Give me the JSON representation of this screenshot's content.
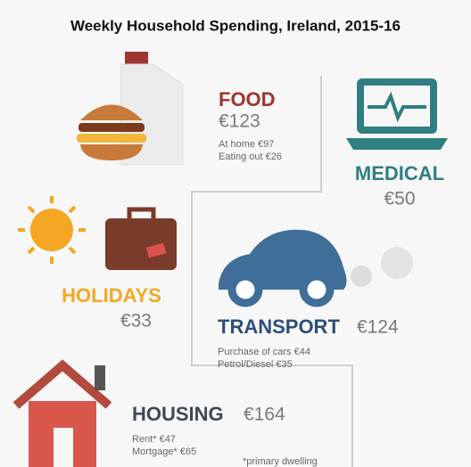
{
  "title": "Weekly Household Spending, Ireland, 2015-16",
  "sections": {
    "food": {
      "label": "FOOD",
      "amount": "€123",
      "details": [
        "At home €97",
        "Eating out €26"
      ]
    },
    "medical": {
      "label": "MEDICAL",
      "amount": "€50"
    },
    "holidays": {
      "label": "HOLIDAYS",
      "amount": "€33"
    },
    "transport": {
      "label": "TRANSPORT",
      "amount": "€124",
      "details": [
        "Purchase of cars €44",
        "Petrol/Diesel €35"
      ]
    },
    "housing": {
      "label": "HOUSING",
      "amount": "€164",
      "details": [
        "Rent* €47",
        "Mortgage* €65"
      ],
      "note": "*primary dwelling"
    }
  }
}
